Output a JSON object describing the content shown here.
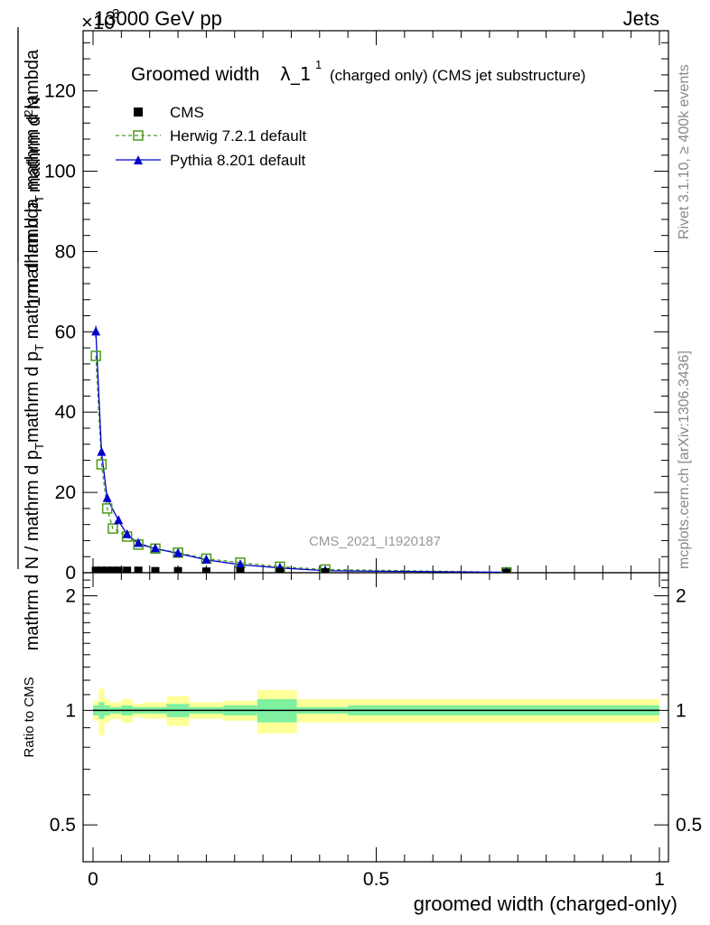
{
  "chart_data": {
    "type": "scatter",
    "header": {
      "left": "13000 GeV pp",
      "right": "Jets",
      "exponent_prefix": "×10",
      "exponent": "3"
    },
    "title": {
      "main": "Groomed width",
      "lambda_part": "λ_1",
      "superscript": "1",
      "suffix": "(charged only) (CMS jet substructure)"
    },
    "ylabel": {
      "numerator": "1",
      "denominator_upper": "mathrm dN",
      "denominator_lower": "mathrm d p",
      "denominator_lower_sub": "T",
      "denominator_lower_rest": " mathrm d lambda",
      "bottom_fraction": "mathrm d N / mathrm d p",
      "bottom_sub": "T",
      "bottom_rest": " mathrm d p",
      "bottom_sub2": "T",
      "bottom_rest2": " mathrm d p"
    },
    "ylabel_lines": {
      "top": "mathrm d",
      "top_sup": "2",
      "top_rest": "N",
      "mid": "mathrm d p",
      "mid_sub": "T",
      "mid_rest": " mathrm d lambda",
      "one": "1",
      "den1": "mathrm d N / mathrm d p",
      "den1_sub": "T",
      "den1_rest": "mathrm d p",
      "den1_sub2": "T",
      "den1_rest2": " mathrm d lambda"
    },
    "xlabel": "groomed width (charged-only)",
    "ratio_ylabel": "Ratio to CMS",
    "watermark": "CMS_2021_I1920187",
    "side_right_top": "Rivet 3.1.10, ≥ 400k events",
    "side_right_bottom": "mcplots.cern.ch [arXiv:1306.3436]",
    "xlim": [
      0,
      1
    ],
    "ylim": [
      0,
      135
    ],
    "yticks": [
      0,
      20,
      40,
      60,
      80,
      100,
      120
    ],
    "ytick_labels": [
      "0",
      "20",
      "40",
      "60",
      "80",
      "100",
      "120"
    ],
    "xticks": [
      0,
      0.5,
      1
    ],
    "xtick_labels": [
      "0",
      "0.5",
      "1"
    ],
    "ratio_ylim": [
      0.4,
      2.3
    ],
    "ratio_yticks": [
      0.5,
      1,
      2
    ],
    "ratio_ytick_labels": [
      "0.5",
      "1",
      "2"
    ],
    "legend_position": "top-left",
    "series": [
      {
        "name": "CMS",
        "marker": "filled-square",
        "color": "#000000",
        "x": [
          0.005,
          0.015,
          0.025,
          0.035,
          0.045,
          0.06,
          0.08,
          0.11,
          0.15,
          0.2,
          0.26,
          0.33,
          0.41,
          0.73
        ],
        "y": [
          0.5,
          0.5,
          0.5,
          0.5,
          0.5,
          0.5,
          0.5,
          0.4,
          0.4,
          0.3,
          0.3,
          0.2,
          0.1,
          0.0
        ]
      },
      {
        "name": "Herwig 7.2.1 default",
        "marker": "open-square",
        "line": "dashed",
        "color": "#4a9a1a",
        "x": [
          0.005,
          0.015,
          0.025,
          0.035,
          0.06,
          0.08,
          0.11,
          0.15,
          0.2,
          0.26,
          0.33,
          0.41,
          0.73
        ],
        "y": [
          54,
          27,
          16,
          11,
          9,
          7,
          6,
          5,
          3.5,
          2.5,
          1.5,
          0.8,
          0.1
        ]
      },
      {
        "name": "Pythia 8.201 default",
        "marker": "filled-triangle",
        "line": "solid",
        "color": "#0000cc",
        "x": [
          0.005,
          0.015,
          0.025,
          0.045,
          0.06,
          0.08,
          0.11,
          0.15,
          0.2,
          0.26,
          0.33,
          0.41,
          0.73
        ],
        "y": [
          60,
          30,
          18.5,
          13,
          9.5,
          7.3,
          6,
          4.8,
          3.2,
          2,
          1.2,
          0.5,
          0.1
        ]
      }
    ],
    "ratio_bands": {
      "color_inner": "#7ef0a0",
      "color_outer": "#ffff99",
      "bins": [
        {
          "x0": 0.0,
          "x1": 0.01,
          "inner": 0.03,
          "outer": 0.06
        },
        {
          "x0": 0.01,
          "x1": 0.02,
          "inner": 0.05,
          "outer": 0.14
        },
        {
          "x0": 0.02,
          "x1": 0.03,
          "inner": 0.03,
          "outer": 0.07
        },
        {
          "x0": 0.03,
          "x1": 0.05,
          "inner": 0.02,
          "outer": 0.05
        },
        {
          "x0": 0.05,
          "x1": 0.07,
          "inner": 0.03,
          "outer": 0.07
        },
        {
          "x0": 0.07,
          "x1": 0.09,
          "inner": 0.02,
          "outer": 0.04
        },
        {
          "x0": 0.09,
          "x1": 0.13,
          "inner": 0.02,
          "outer": 0.05
        },
        {
          "x0": 0.13,
          "x1": 0.17,
          "inner": 0.04,
          "outer": 0.09
        },
        {
          "x0": 0.17,
          "x1": 0.23,
          "inner": 0.02,
          "outer": 0.05
        },
        {
          "x0": 0.23,
          "x1": 0.29,
          "inner": 0.03,
          "outer": 0.06
        },
        {
          "x0": 0.29,
          "x1": 0.36,
          "inner": 0.07,
          "outer": 0.13
        },
        {
          "x0": 0.36,
          "x1": 0.45,
          "inner": 0.02,
          "outer": 0.07
        },
        {
          "x0": 0.45,
          "x1": 1.0,
          "inner": 0.03,
          "outer": 0.07
        }
      ]
    }
  }
}
